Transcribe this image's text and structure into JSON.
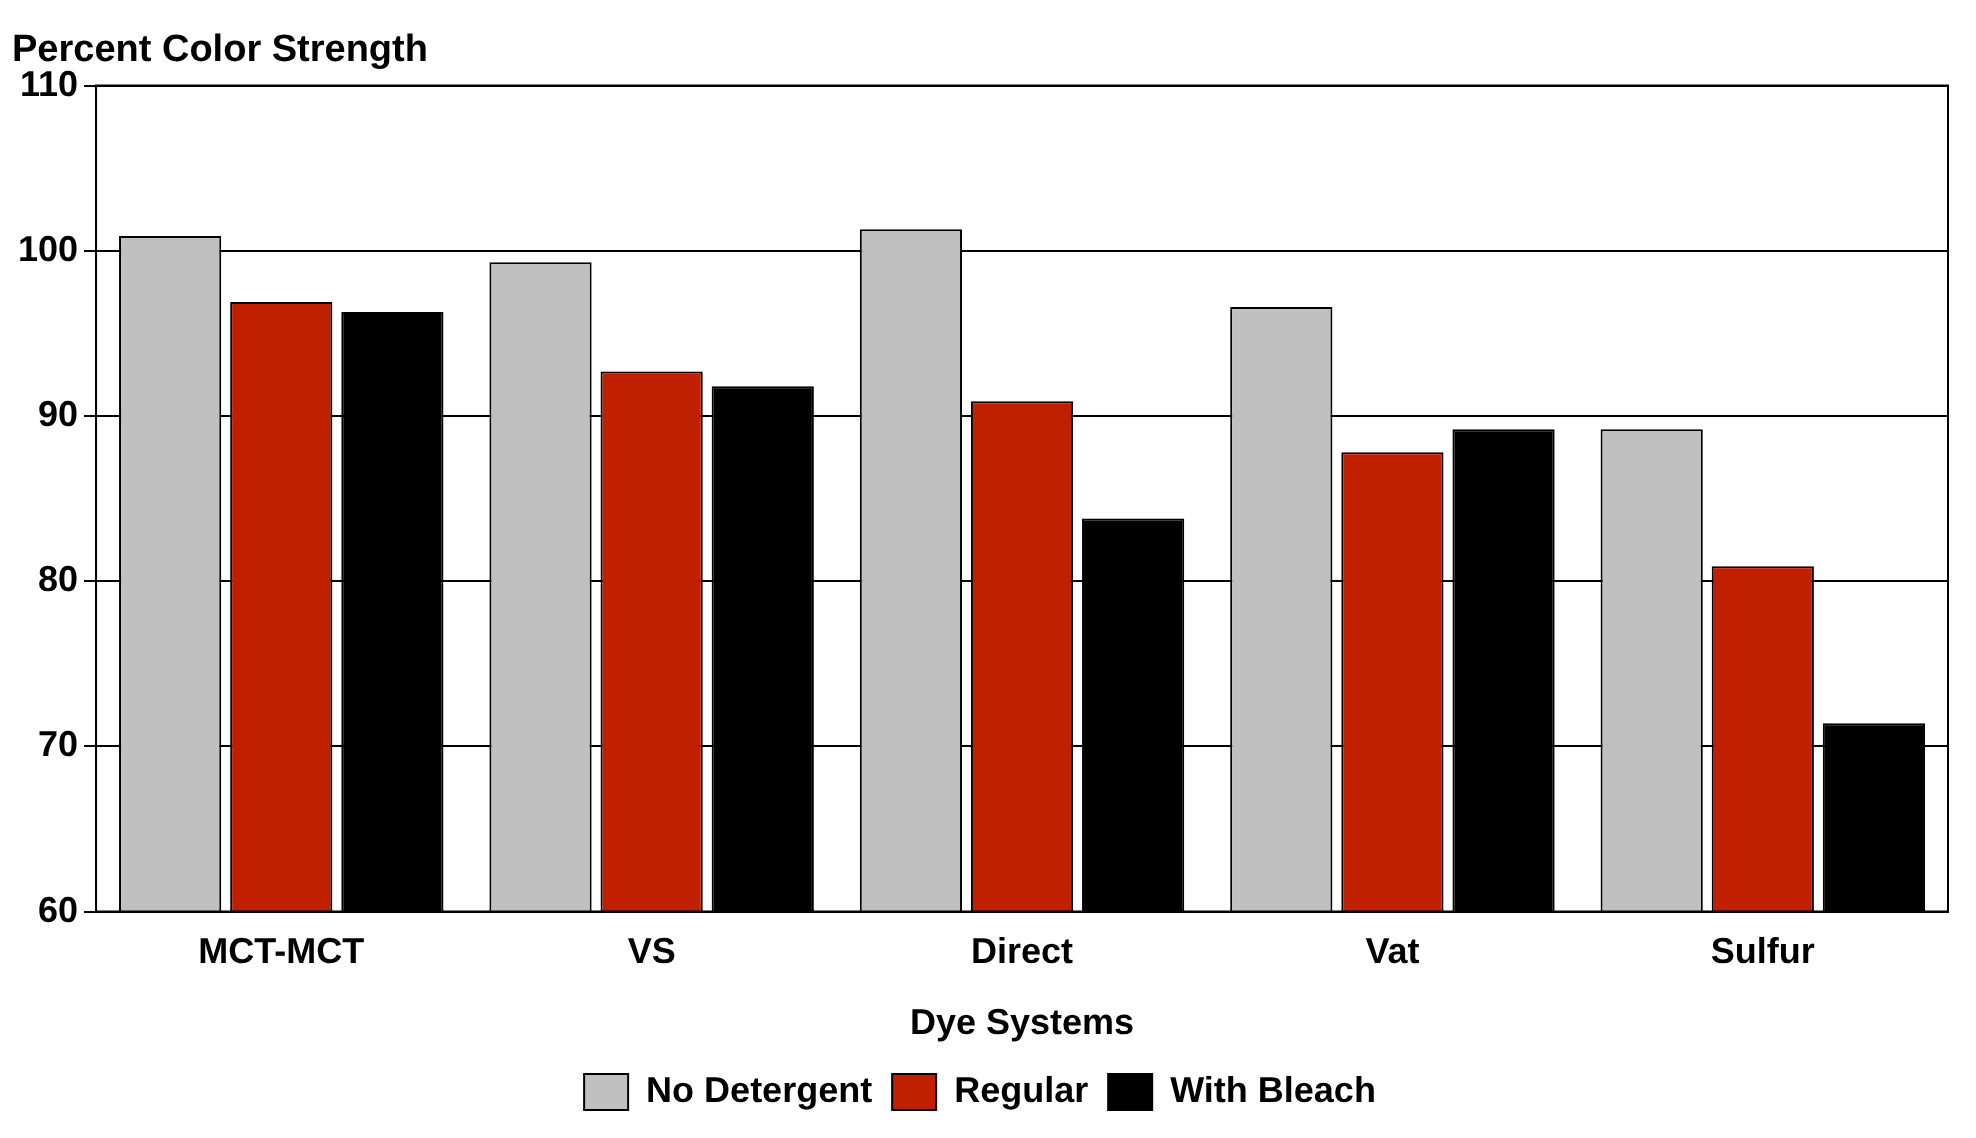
{
  "chart_data": {
    "type": "bar",
    "title": "Percent Color Strength",
    "xlabel": "Dye Systems",
    "categories": [
      "MCT-MCT",
      "VS",
      "Direct",
      "Vat",
      "Sulfur"
    ],
    "series": [
      {
        "name": "No Detergent",
        "color": "#c0c0c0",
        "values": [
          100.9,
          99.3,
          101.3,
          96.6,
          89.2
        ]
      },
      {
        "name": "Regular",
        "color": "#c02000",
        "values": [
          96.9,
          92.7,
          90.9,
          87.8,
          80.9
        ]
      },
      {
        "name": "With Bleach",
        "color": "#000000",
        "values": [
          96.3,
          91.8,
          83.8,
          89.2,
          71.4
        ]
      }
    ],
    "ylim": [
      60,
      110
    ],
    "yticks": [
      60,
      70,
      80,
      90,
      100,
      110
    ],
    "grid": "y",
    "legend": "bottom"
  }
}
